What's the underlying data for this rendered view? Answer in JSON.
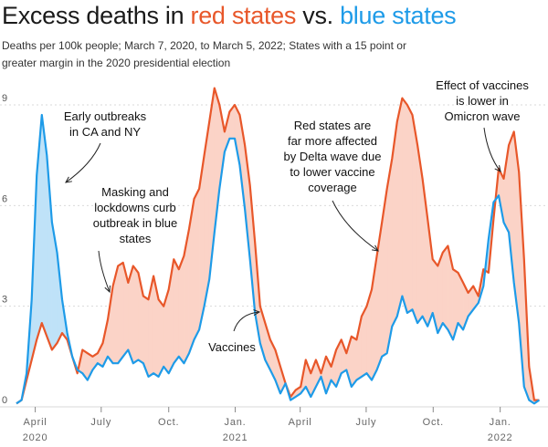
{
  "title": {
    "prefix": "Excess deaths in ",
    "red": "red states",
    "middle": " vs. ",
    "blue": "blue states"
  },
  "subtitle": "Deaths per 100k people; March 7, 2020, to March 5, 2022; States with a 15 point or greater margin in the 2020 presidential election",
  "colors": {
    "red": "#e8572a",
    "blue": "#1e9be8",
    "red_fill": "#fbd3c7",
    "blue_fill": "#bfe2f8",
    "grid": "#d9d9d9"
  },
  "annotations": [
    {
      "lines": [
        "Early outbreaks",
        "in CA and NY"
      ]
    },
    {
      "lines": [
        "Masking and",
        "lockdowns curb",
        "outbreak in blue",
        "states"
      ]
    },
    {
      "lines": [
        "Vaccines"
      ]
    },
    {
      "lines": [
        "Red states are",
        "far more affected",
        "by Delta wave due",
        "to lower vaccine",
        "coverage"
      ]
    },
    {
      "lines": [
        "Effect of vaccines",
        "is lower in",
        "Omicron wave"
      ]
    }
  ],
  "chart_data": {
    "type": "area",
    "x_unit": "weeks since March 7, 2020",
    "xlim": [
      0,
      104
    ],
    "ylim": [
      0,
      9.6
    ],
    "yticks": [
      0,
      3,
      6,
      9
    ],
    "xtick_labels": [
      {
        "x": 3.7,
        "top": "April",
        "bottom": "2020"
      },
      {
        "x": 16.7,
        "top": "July",
        "bottom": ""
      },
      {
        "x": 30,
        "top": "Oct.",
        "bottom": ""
      },
      {
        "x": 43.1,
        "top": "Jan.",
        "bottom": "2021"
      },
      {
        "x": 55.9,
        "top": "April",
        "bottom": ""
      },
      {
        "x": 68.9,
        "top": "July",
        "bottom": ""
      },
      {
        "x": 82.1,
        "top": "Oct.",
        "bottom": ""
      },
      {
        "x": 95.3,
        "top": "Jan.",
        "bottom": "2022"
      }
    ],
    "grid": "horizontal",
    "series": [
      {
        "name": "red states",
        "points": [
          [
            0,
            0.1
          ],
          [
            1,
            0.2
          ],
          [
            2,
            0.8
          ],
          [
            3,
            1.4
          ],
          [
            4,
            2.0
          ],
          [
            5,
            2.5
          ],
          [
            6,
            2.1
          ],
          [
            7,
            1.7
          ],
          [
            8,
            1.9
          ],
          [
            9,
            2.2
          ],
          [
            10,
            2.0
          ],
          [
            11,
            1.5
          ],
          [
            12,
            1.0
          ],
          [
            13,
            1.7
          ],
          [
            14,
            1.6
          ],
          [
            15,
            1.5
          ],
          [
            16,
            1.6
          ],
          [
            17,
            1.9
          ],
          [
            18,
            2.6
          ],
          [
            19,
            3.6
          ],
          [
            20,
            4.2
          ],
          [
            21,
            4.3
          ],
          [
            22,
            3.7
          ],
          [
            23,
            4.2
          ],
          [
            24,
            4.0
          ],
          [
            25,
            3.3
          ],
          [
            26,
            3.2
          ],
          [
            27,
            3.9
          ],
          [
            28,
            3.2
          ],
          [
            29,
            3.0
          ],
          [
            30,
            3.5
          ],
          [
            31,
            4.4
          ],
          [
            32,
            4.1
          ],
          [
            33,
            4.5
          ],
          [
            34,
            5.3
          ],
          [
            35,
            6.2
          ],
          [
            36,
            6.5
          ],
          [
            37,
            7.5
          ],
          [
            38,
            8.5
          ],
          [
            39,
            9.5
          ],
          [
            40,
            9.0
          ],
          [
            41,
            8.2
          ],
          [
            42,
            8.8
          ],
          [
            43,
            9.0
          ],
          [
            44,
            8.7
          ],
          [
            45,
            7.8
          ],
          [
            46,
            6.6
          ],
          [
            47,
            4.9
          ],
          [
            48,
            3.0
          ],
          [
            49,
            2.5
          ],
          [
            50,
            2.0
          ],
          [
            51,
            1.7
          ],
          [
            52,
            1.2
          ],
          [
            53,
            0.7
          ],
          [
            54,
            0.3
          ],
          [
            55,
            0.5
          ],
          [
            56,
            0.6
          ],
          [
            57,
            1.4
          ],
          [
            58,
            1.0
          ],
          [
            59,
            1.4
          ],
          [
            60,
            1.0
          ],
          [
            61,
            1.5
          ],
          [
            62,
            1.2
          ],
          [
            63,
            1.7
          ],
          [
            64,
            2.0
          ],
          [
            65,
            1.6
          ],
          [
            66,
            2.1
          ],
          [
            67,
            2.0
          ],
          [
            68,
            2.7
          ],
          [
            69,
            3.0
          ],
          [
            70,
            3.5
          ],
          [
            71,
            4.5
          ],
          [
            72,
            5.5
          ],
          [
            73,
            6.5
          ],
          [
            74,
            7.4
          ],
          [
            75,
            8.5
          ],
          [
            76,
            9.2
          ],
          [
            77,
            9.0
          ],
          [
            78,
            8.7
          ],
          [
            79,
            7.8
          ],
          [
            80,
            6.8
          ],
          [
            81,
            5.6
          ],
          [
            82,
            4.4
          ],
          [
            83,
            4.2
          ],
          [
            84,
            4.6
          ],
          [
            85,
            4.8
          ],
          [
            86,
            4.1
          ],
          [
            87,
            4.0
          ],
          [
            88,
            3.7
          ],
          [
            89,
            3.4
          ],
          [
            90,
            3.6
          ],
          [
            91,
            3.3
          ],
          [
            92,
            4.1
          ],
          [
            93,
            4.0
          ],
          [
            94,
            5.6
          ],
          [
            95,
            7.1
          ],
          [
            96,
            6.8
          ],
          [
            97,
            7.8
          ],
          [
            98,
            8.2
          ],
          [
            99,
            7.0
          ],
          [
            100,
            4.4
          ],
          [
            101,
            1.2
          ],
          [
            102,
            0.2
          ],
          [
            103,
            0.2
          ]
        ]
      },
      {
        "name": "blue states",
        "points": [
          [
            0,
            0.1
          ],
          [
            1,
            0.2
          ],
          [
            2,
            1.0
          ],
          [
            3,
            3.2
          ],
          [
            4,
            6.9
          ],
          [
            5,
            8.7
          ],
          [
            6,
            7.5
          ],
          [
            7,
            5.5
          ],
          [
            8,
            4.6
          ],
          [
            9,
            3.2
          ],
          [
            10,
            2.2
          ],
          [
            11,
            1.5
          ],
          [
            12,
            1.1
          ],
          [
            13,
            1.0
          ],
          [
            14,
            0.8
          ],
          [
            15,
            1.1
          ],
          [
            16,
            1.3
          ],
          [
            17,
            1.2
          ],
          [
            18,
            1.5
          ],
          [
            19,
            1.3
          ],
          [
            20,
            1.3
          ],
          [
            21,
            1.5
          ],
          [
            22,
            1.7
          ],
          [
            23,
            1.3
          ],
          [
            24,
            1.4
          ],
          [
            25,
            1.3
          ],
          [
            26,
            0.9
          ],
          [
            27,
            1.0
          ],
          [
            28,
            0.9
          ],
          [
            29,
            1.2
          ],
          [
            30,
            1.0
          ],
          [
            31,
            1.3
          ],
          [
            32,
            1.5
          ],
          [
            33,
            1.3
          ],
          [
            34,
            1.6
          ],
          [
            35,
            2.0
          ],
          [
            36,
            2.3
          ],
          [
            37,
            3.0
          ],
          [
            38,
            3.8
          ],
          [
            39,
            5.2
          ],
          [
            40,
            6.5
          ],
          [
            41,
            7.6
          ],
          [
            42,
            8.0
          ],
          [
            43,
            8.0
          ],
          [
            44,
            7.2
          ],
          [
            45,
            5.9
          ],
          [
            46,
            4.4
          ],
          [
            47,
            2.8
          ],
          [
            48,
            1.9
          ],
          [
            49,
            1.4
          ],
          [
            50,
            1.1
          ],
          [
            51,
            0.8
          ],
          [
            52,
            0.4
          ],
          [
            53,
            0.7
          ],
          [
            54,
            0.2
          ],
          [
            55,
            0.3
          ],
          [
            56,
            0.4
          ],
          [
            57,
            0.6
          ],
          [
            58,
            0.3
          ],
          [
            59,
            0.6
          ],
          [
            60,
            0.9
          ],
          [
            61,
            0.4
          ],
          [
            62,
            0.8
          ],
          [
            63,
            0.6
          ],
          [
            64,
            1.0
          ],
          [
            65,
            1.1
          ],
          [
            66,
            0.6
          ],
          [
            67,
            0.8
          ],
          [
            68,
            0.9
          ],
          [
            69,
            1.0
          ],
          [
            70,
            0.8
          ],
          [
            71,
            1.1
          ],
          [
            72,
            1.5
          ],
          [
            73,
            1.6
          ],
          [
            74,
            2.4
          ],
          [
            75,
            2.7
          ],
          [
            76,
            3.3
          ],
          [
            77,
            2.8
          ],
          [
            78,
            2.9
          ],
          [
            79,
            2.5
          ],
          [
            80,
            2.7
          ],
          [
            81,
            2.4
          ],
          [
            82,
            2.8
          ],
          [
            83,
            2.2
          ],
          [
            84,
            2.5
          ],
          [
            85,
            2.3
          ],
          [
            86,
            2.0
          ],
          [
            87,
            2.5
          ],
          [
            88,
            2.3
          ],
          [
            89,
            2.7
          ],
          [
            90,
            2.9
          ],
          [
            91,
            3.1
          ],
          [
            92,
            3.6
          ],
          [
            93,
            5.0
          ],
          [
            94,
            6.1
          ],
          [
            95,
            6.3
          ],
          [
            96,
            5.5
          ],
          [
            97,
            5.2
          ],
          [
            98,
            3.7
          ],
          [
            99,
            2.5
          ],
          [
            100,
            0.6
          ],
          [
            101,
            0.2
          ],
          [
            102,
            0.1
          ],
          [
            103,
            0.2
          ]
        ]
      }
    ]
  }
}
